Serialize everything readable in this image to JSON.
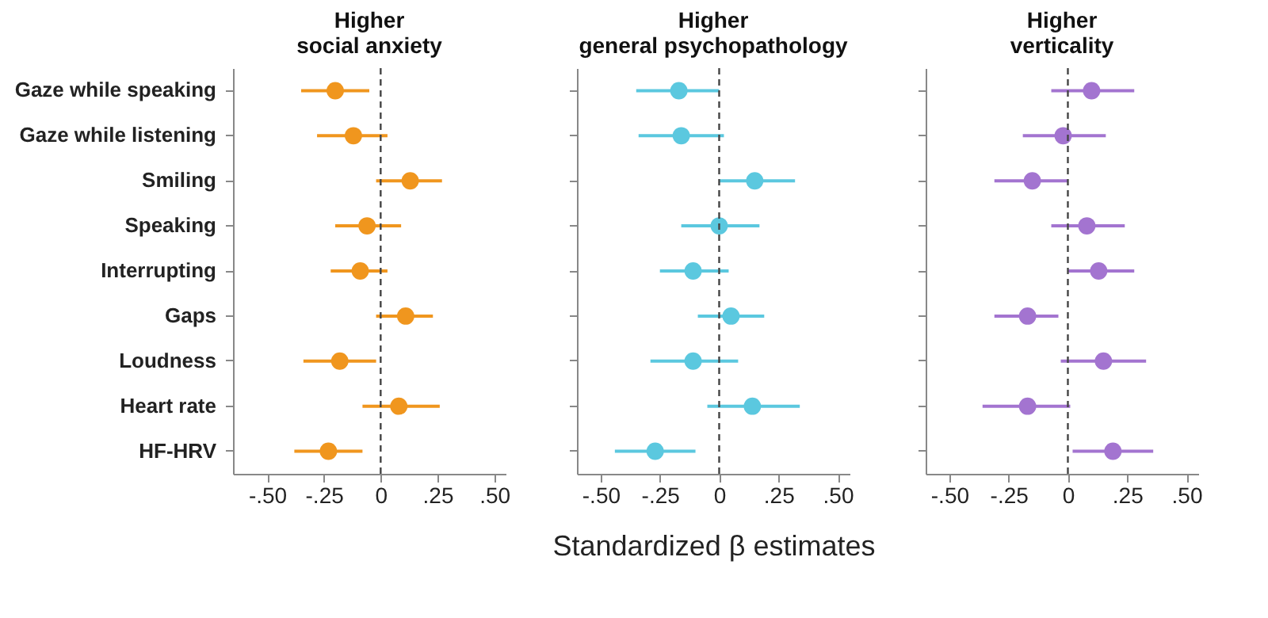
{
  "chart_data": [
    {
      "type": "scatter",
      "orientation": "horizontal",
      "title": "Higher\nsocial anxiety",
      "categories": [
        "Gaze while speaking",
        "Gaze while listening",
        "Smiling",
        "Speaking",
        "Interrupting",
        "Gaps",
        "Loudness",
        "Heart rate",
        "HF-HRV"
      ],
      "series": [
        {
          "color": "#f0961e",
          "values": [
            -0.2,
            -0.12,
            0.13,
            -0.06,
            -0.09,
            0.11,
            -0.18,
            0.08,
            -0.23
          ],
          "errors": [
            [
              -0.35,
              -0.05
            ],
            [
              -0.28,
              0.03
            ],
            [
              -0.02,
              0.27
            ],
            [
              -0.2,
              0.09
            ],
            [
              -0.22,
              0.03
            ],
            [
              -0.02,
              0.23
            ],
            [
              -0.34,
              -0.02
            ],
            [
              -0.08,
              0.26
            ],
            [
              -0.38,
              -0.08
            ]
          ]
        }
      ],
      "xlim": [
        -0.65,
        0.55
      ],
      "xticks": [
        {
          "value": -0.5,
          "label": "-.50"
        },
        {
          "value": -0.25,
          "label": "-.25"
        },
        {
          "value": 0,
          "label": "0"
        },
        {
          "value": 0.25,
          "label": ".25"
        },
        {
          "value": 0.5,
          "label": ".50"
        }
      ],
      "ref_lines": [
        {
          "axis": "x",
          "value": 0,
          "line_style": "dashed"
        }
      ],
      "marker": "circle",
      "grid": false,
      "legend": false
    },
    {
      "type": "scatter",
      "orientation": "horizontal",
      "title": "Higher\ngeneral psychopathology",
      "xlabel": "Standardized β estimates",
      "categories": [
        null,
        null,
        null,
        null,
        null,
        null,
        null,
        null,
        null
      ],
      "series": [
        {
          "color": "#5bc8df",
          "values": [
            -0.17,
            -0.16,
            0.15,
            0.0,
            -0.11,
            0.05,
            -0.11,
            0.14,
            -0.27
          ],
          "errors": [
            [
              -0.35,
              0.0
            ],
            [
              -0.34,
              0.02
            ],
            [
              0.0,
              0.32
            ],
            [
              -0.16,
              0.17
            ],
            [
              -0.25,
              0.04
            ],
            [
              -0.09,
              0.19
            ],
            [
              -0.29,
              0.08
            ],
            [
              -0.05,
              0.34
            ],
            [
              -0.44,
              -0.1
            ]
          ]
        }
      ],
      "xlim": [
        -0.6,
        0.55
      ],
      "xticks": [
        {
          "value": -0.5,
          "label": "-.50"
        },
        {
          "value": -0.25,
          "label": "-.25"
        },
        {
          "value": 0,
          "label": "0"
        },
        {
          "value": 0.25,
          "label": ".25"
        },
        {
          "value": 0.5,
          "label": ".50"
        }
      ],
      "ref_lines": [
        {
          "axis": "x",
          "value": 0,
          "line_style": "dashed"
        }
      ],
      "marker": "circle",
      "grid": false,
      "legend": false,
      "tick_labels": "x"
    },
    {
      "type": "scatter",
      "orientation": "horizontal",
      "title": "Higher\nverticality",
      "categories": [
        null,
        null,
        null,
        null,
        null,
        null,
        null,
        null,
        null
      ],
      "series": [
        {
          "color": "#a374d0",
          "values": [
            0.1,
            -0.02,
            -0.15,
            0.08,
            0.13,
            -0.17,
            0.15,
            -0.17,
            0.19
          ],
          "errors": [
            [
              -0.07,
              0.28
            ],
            [
              -0.19,
              0.16
            ],
            [
              -0.31,
              0.0
            ],
            [
              -0.07,
              0.24
            ],
            [
              0.0,
              0.28
            ],
            [
              -0.31,
              -0.04
            ],
            [
              -0.03,
              0.33
            ],
            [
              -0.36,
              0.01
            ],
            [
              0.02,
              0.36
            ]
          ]
        }
      ],
      "xlim": [
        -0.6,
        0.55
      ],
      "xticks": [
        {
          "value": -0.5,
          "label": "-.50"
        },
        {
          "value": -0.25,
          "label": "-.25"
        },
        {
          "value": 0,
          "label": "0"
        },
        {
          "value": 0.25,
          "label": ".25"
        },
        {
          "value": 0.5,
          "label": ".50"
        }
      ],
      "ref_lines": [
        {
          "axis": "x",
          "value": 0,
          "line_style": "dashed"
        }
      ],
      "marker": "circle",
      "grid": false,
      "legend": false,
      "tick_labels": "x"
    }
  ]
}
